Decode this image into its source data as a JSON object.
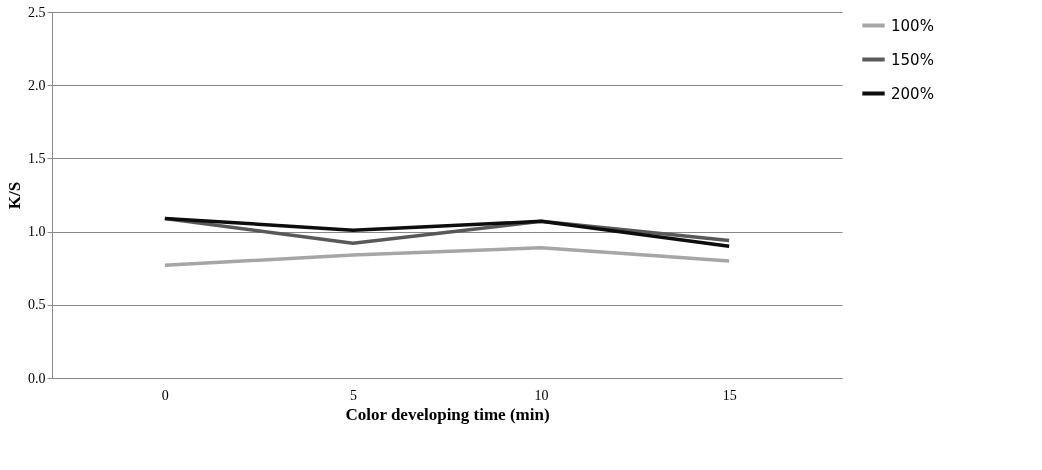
{
  "chart_data": {
    "type": "line",
    "xlabel": "Color developing time (min)",
    "ylabel": "K/S",
    "categories": [
      "0",
      "5",
      "10",
      "15"
    ],
    "series": [
      {
        "name": "100%",
        "color": "#a6a6a6",
        "values": [
          0.77,
          0.84,
          0.89,
          0.8
        ]
      },
      {
        "name": "150%",
        "color": "#595959",
        "values": [
          1.09,
          0.92,
          1.07,
          0.94
        ]
      },
      {
        "name": "200%",
        "color": "#0d0d0d",
        "values": [
          1.09,
          1.01,
          1.07,
          0.9
        ]
      }
    ],
    "ylim": [
      0,
      2.5
    ],
    "yticks": [
      {
        "value": 0,
        "label": "0.0"
      },
      {
        "value": 0.5,
        "label": "0.5"
      },
      {
        "value": 1,
        "label": "1.0"
      },
      {
        "value": 1.5,
        "label": "1.5"
      },
      {
        "value": 2,
        "label": "2.0"
      },
      {
        "value": 2.5,
        "label": "2.5"
      }
    ],
    "grid": "y",
    "legend": "right",
    "marker": "none",
    "line_style": "solid"
  }
}
